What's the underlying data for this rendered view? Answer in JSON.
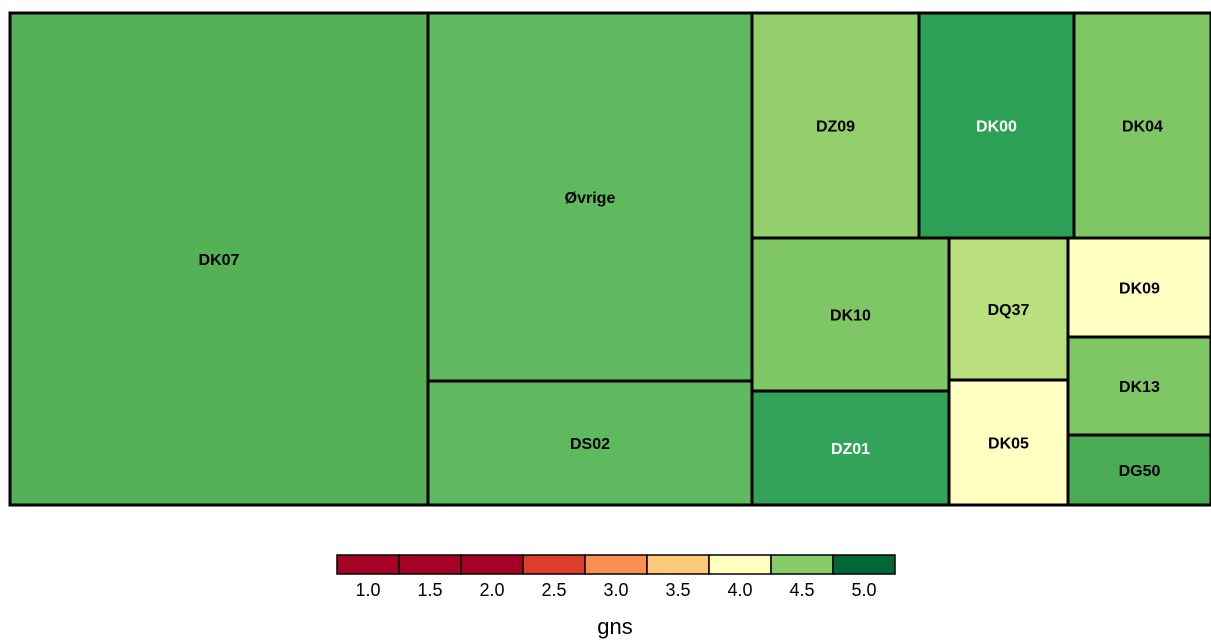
{
  "chart_data": {
    "type": "treemap",
    "title": "",
    "cells": [
      {
        "label": "DK07",
        "value": 4.55,
        "color": "#55b156",
        "label_color": "#000000"
      },
      {
        "label": "Øvrige",
        "value": 4.55,
        "color": "#5fba5f",
        "label_color": "#000000"
      },
      {
        "label": "DS02",
        "value": 4.55,
        "color": "#5fba5f",
        "label_color": "#000000"
      },
      {
        "label": "DZ09",
        "value": 4.3,
        "color": "#93cf6a",
        "label_color": "#000000"
      },
      {
        "label": "DK00",
        "value": 4.9,
        "color": "#2ca156",
        "label_color": "#ffffff"
      },
      {
        "label": "DK04",
        "value": 4.5,
        "color": "#7fc664",
        "label_color": "#000000"
      },
      {
        "label": "DK10",
        "value": 4.5,
        "color": "#7fc664",
        "label_color": "#000000"
      },
      {
        "label": "DQ37",
        "value": 4.2,
        "color": "#b9e07c",
        "label_color": "#000000"
      },
      {
        "label": "DK09",
        "value": 3.95,
        "color": "#ffffc2",
        "label_color": "#000000"
      },
      {
        "label": "DZ01",
        "value": 4.85,
        "color": "#33a35a",
        "label_color": "#ffffff"
      },
      {
        "label": "DK05",
        "value": 3.95,
        "color": "#ffffc2",
        "label_color": "#000000"
      },
      {
        "label": "DK13",
        "value": 4.5,
        "color": "#7fc664",
        "label_color": "#000000"
      },
      {
        "label": "DG50",
        "value": 4.7,
        "color": "#4aac55",
        "label_color": "#000000"
      }
    ],
    "legend": {
      "title": "gns",
      "ticks": [
        "1.0",
        "1.5",
        "2.0",
        "2.5",
        "3.0",
        "3.5",
        "4.0",
        "4.5",
        "5.0"
      ],
      "colors": [
        "#a50026",
        "#a50026",
        "#a50026",
        "#dd3d2d",
        "#f88e52",
        "#fdca79",
        "#ffffbf",
        "#86cb66",
        "#006837"
      ]
    }
  }
}
